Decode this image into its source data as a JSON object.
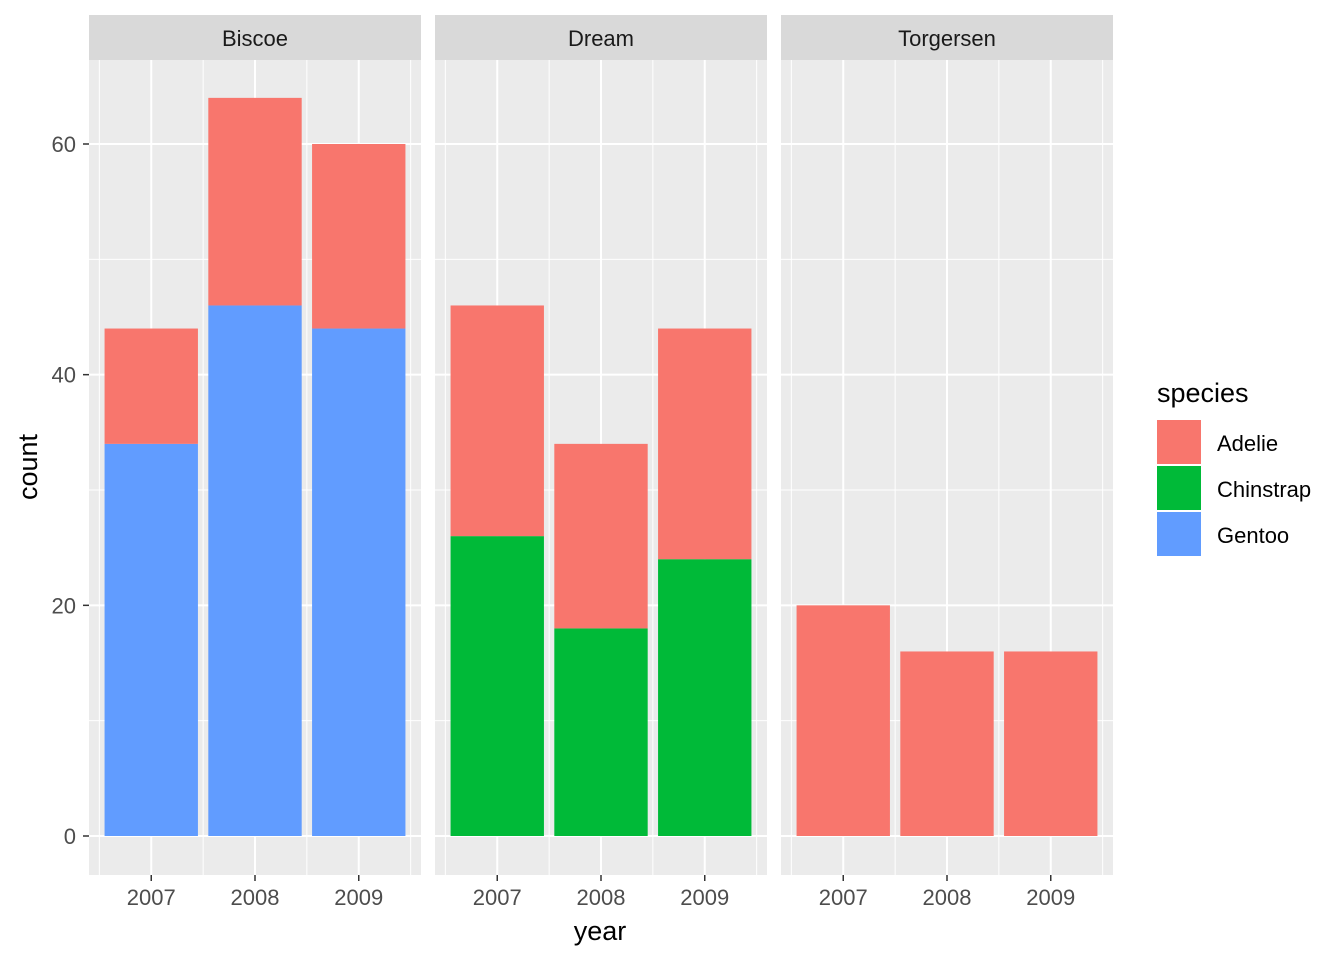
{
  "chart_data": {
    "type": "bar",
    "stacked": true,
    "facet_by": "island",
    "xlabel": "year",
    "ylabel": "count",
    "ylim": [
      0,
      68.5
    ],
    "yticks": [
      0,
      20,
      40,
      60
    ],
    "categories": [
      "2007",
      "2008",
      "2009"
    ],
    "grid": true,
    "legend": {
      "title": "species",
      "placement": "right",
      "entries": [
        {
          "name": "Adelie",
          "color": "#F8766D"
        },
        {
          "name": "Chinstrap",
          "color": "#00BA38"
        },
        {
          "name": "Gentoo",
          "color": "#619CFF"
        }
      ]
    },
    "panels": [
      {
        "title": "Biscoe",
        "series": [
          {
            "name": "Adelie",
            "values": [
              10,
              18,
              16
            ]
          },
          {
            "name": "Chinstrap",
            "values": [
              0,
              0,
              0
            ]
          },
          {
            "name": "Gentoo",
            "values": [
              34,
              46,
              44
            ]
          }
        ]
      },
      {
        "title": "Dream",
        "series": [
          {
            "name": "Adelie",
            "values": [
              20,
              16,
              20
            ]
          },
          {
            "name": "Chinstrap",
            "values": [
              26,
              18,
              24
            ]
          },
          {
            "name": "Gentoo",
            "values": [
              0,
              0,
              0
            ]
          }
        ]
      },
      {
        "title": "Torgersen",
        "series": [
          {
            "name": "Adelie",
            "values": [
              20,
              16,
              16
            ]
          },
          {
            "name": "Chinstrap",
            "values": [
              0,
              0,
              0
            ]
          },
          {
            "name": "Gentoo",
            "values": [
              0,
              0,
              0
            ]
          }
        ]
      }
    ],
    "colors": {
      "panel_background": "#EBEBEB",
      "strip_background": "#D9D9D9",
      "grid": "#FFFFFF"
    }
  }
}
